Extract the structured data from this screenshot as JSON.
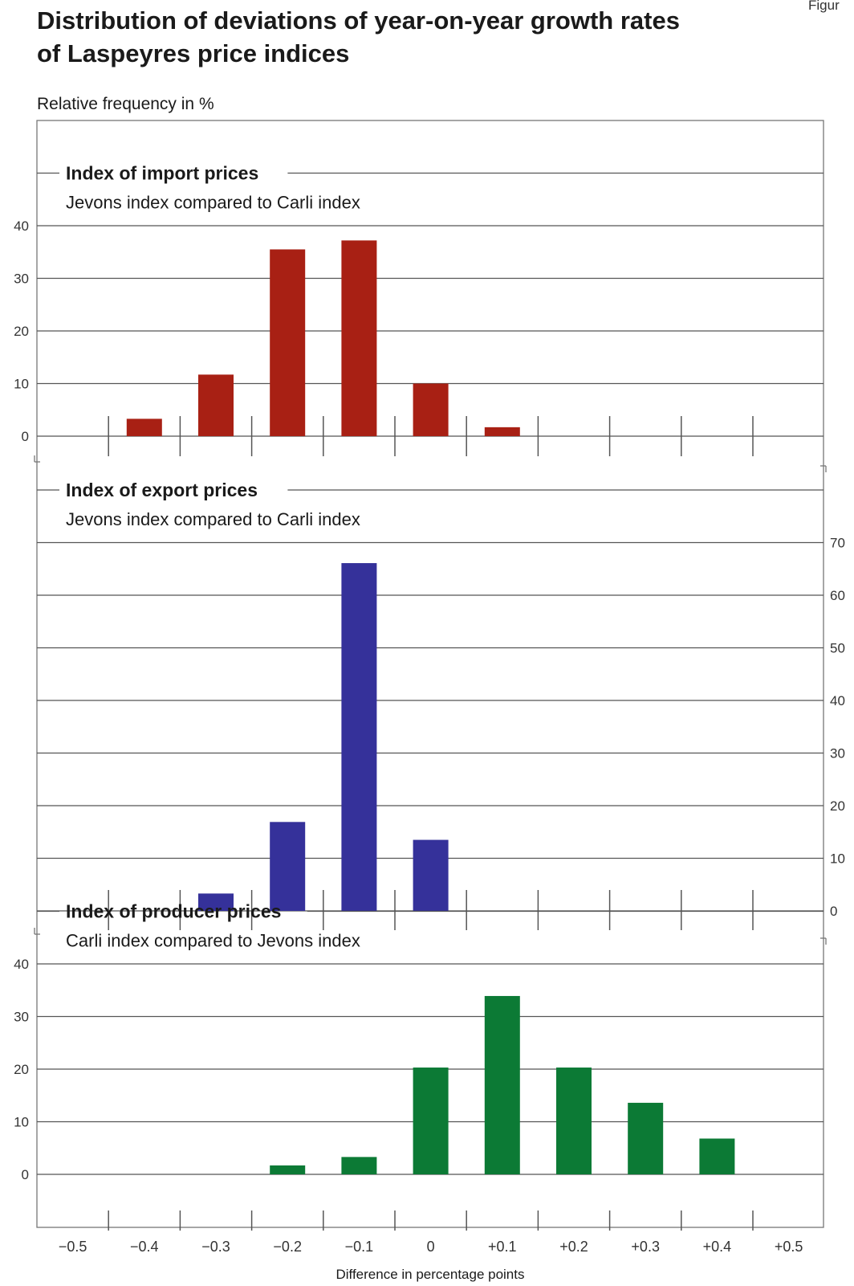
{
  "header": {
    "figure_label": "Figur",
    "title_line1": "Distribution of deviations of year-on-year growth rates",
    "title_line2": "of Laspeyres price indices"
  },
  "chart_data": {
    "type": "bar",
    "ylabel": "Relative frequency in %",
    "xlabel": "Difference in percentage points",
    "categories": [
      "−0.5",
      "−0.4",
      "−0.3",
      "−0.2",
      "−0.1",
      "0",
      "+0.1",
      "+0.2",
      "+0.3",
      "+0.4",
      "+0.5"
    ],
    "grid": true,
    "panels": [
      {
        "title": "Index of import prices",
        "subtitle": "Jevons index compared to Carli index",
        "color": "#a82014",
        "y_axis_side": "left",
        "ylim": [
          0,
          40
        ],
        "yticks": [
          0,
          10,
          20,
          30,
          40
        ],
        "values": [
          0,
          3.3,
          11.7,
          35.5,
          37.2,
          10.0,
          1.7,
          0,
          0,
          0,
          0
        ]
      },
      {
        "title": "Index of export prices",
        "subtitle": "Jevons index compared to Carli index",
        "color": "#35319a",
        "y_axis_side": "right",
        "ylim": [
          0,
          70
        ],
        "yticks": [
          0,
          10,
          20,
          30,
          40,
          50,
          60,
          70
        ],
        "values": [
          0,
          0,
          3.3,
          16.9,
          66.1,
          13.5,
          0,
          0,
          0,
          0,
          0
        ]
      },
      {
        "title": "Index of producer prices",
        "subtitle": "Carli index compared to Jevons index",
        "color": "#0c7a35",
        "y_axis_side": "left",
        "ylim": [
          0,
          40
        ],
        "yticks": [
          0,
          10,
          20,
          30,
          40
        ],
        "values": [
          0,
          0,
          0,
          1.7,
          3.3,
          20.3,
          33.9,
          20.3,
          13.6,
          6.8,
          0
        ]
      }
    ]
  }
}
